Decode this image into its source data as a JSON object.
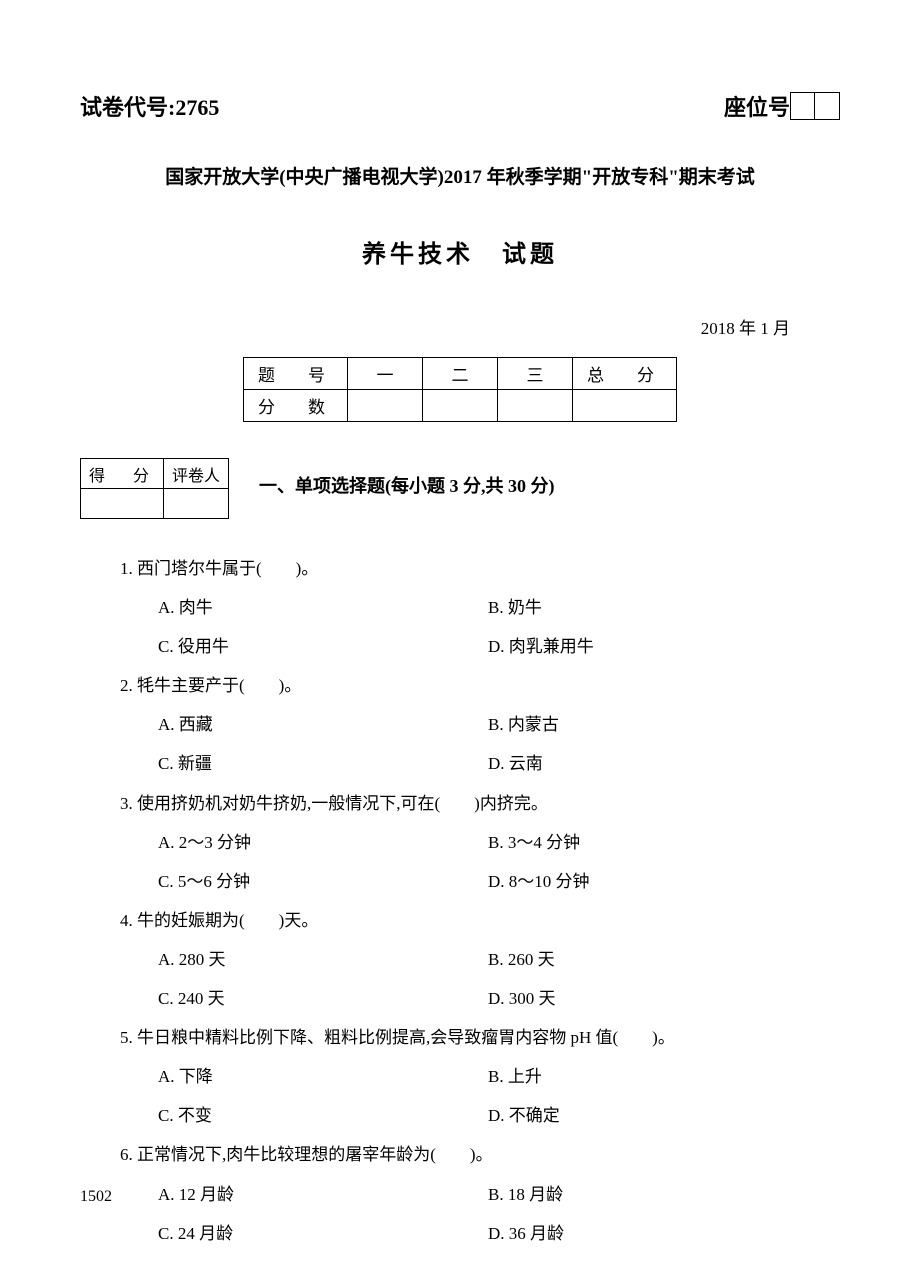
{
  "header": {
    "exam_code_label": "试卷代号:",
    "exam_code": "2765",
    "seat_label": "座位号"
  },
  "university_line": "国家开放大学(中央广播电视大学)2017 年秋季学期\"开放专科\"期末考试",
  "exam_title": "养牛技术　试题",
  "date": "2018 年 1 月",
  "score_table": {
    "row1": [
      "题　号",
      "一",
      "二",
      "三",
      "总　分"
    ],
    "row2_label": "分　数"
  },
  "grader_table": {
    "score_label": "得　分",
    "grader_label": "评卷人"
  },
  "section1": {
    "title": "一、单项选择题(每小题 3 分,共 30 分)",
    "questions": [
      {
        "num": "1.",
        "text": "西门塔尔牛属于(　　)。",
        "A": "A. 肉牛",
        "B": "B. 奶牛",
        "C": "C. 役用牛",
        "D": "D. 肉乳兼用牛"
      },
      {
        "num": "2.",
        "text": "牦牛主要产于(　　)。",
        "A": "A. 西藏",
        "B": "B. 内蒙古",
        "C": "C. 新疆",
        "D": "D. 云南"
      },
      {
        "num": "3.",
        "text": "使用挤奶机对奶牛挤奶,一般情况下,可在(　　)内挤完。",
        "A": "A. 2～3 分钟",
        "B": "B. 3～4 分钟",
        "C": "C. 5～6 分钟",
        "D": "D. 8～10 分钟"
      },
      {
        "num": "4.",
        "text": "牛的妊娠期为(　　)天。",
        "A": "A. 280 天",
        "B": "B. 260 天",
        "C": "C. 240 天",
        "D": "D. 300 天"
      },
      {
        "num": "5.",
        "text": "牛日粮中精料比例下降、粗料比例提高,会导致瘤胃内容物 pH 值(　　)。",
        "A": "A. 下降",
        "B": "B. 上升",
        "C": "C. 不变",
        "D": "D. 不确定"
      },
      {
        "num": "6.",
        "text": "正常情况下,肉牛比较理想的屠宰年龄为(　　)。",
        "A": "A. 12 月龄",
        "B": "B. 18 月龄",
        "C": "C. 24 月龄",
        "D": "D. 36 月龄"
      }
    ]
  },
  "page_number": "1502"
}
